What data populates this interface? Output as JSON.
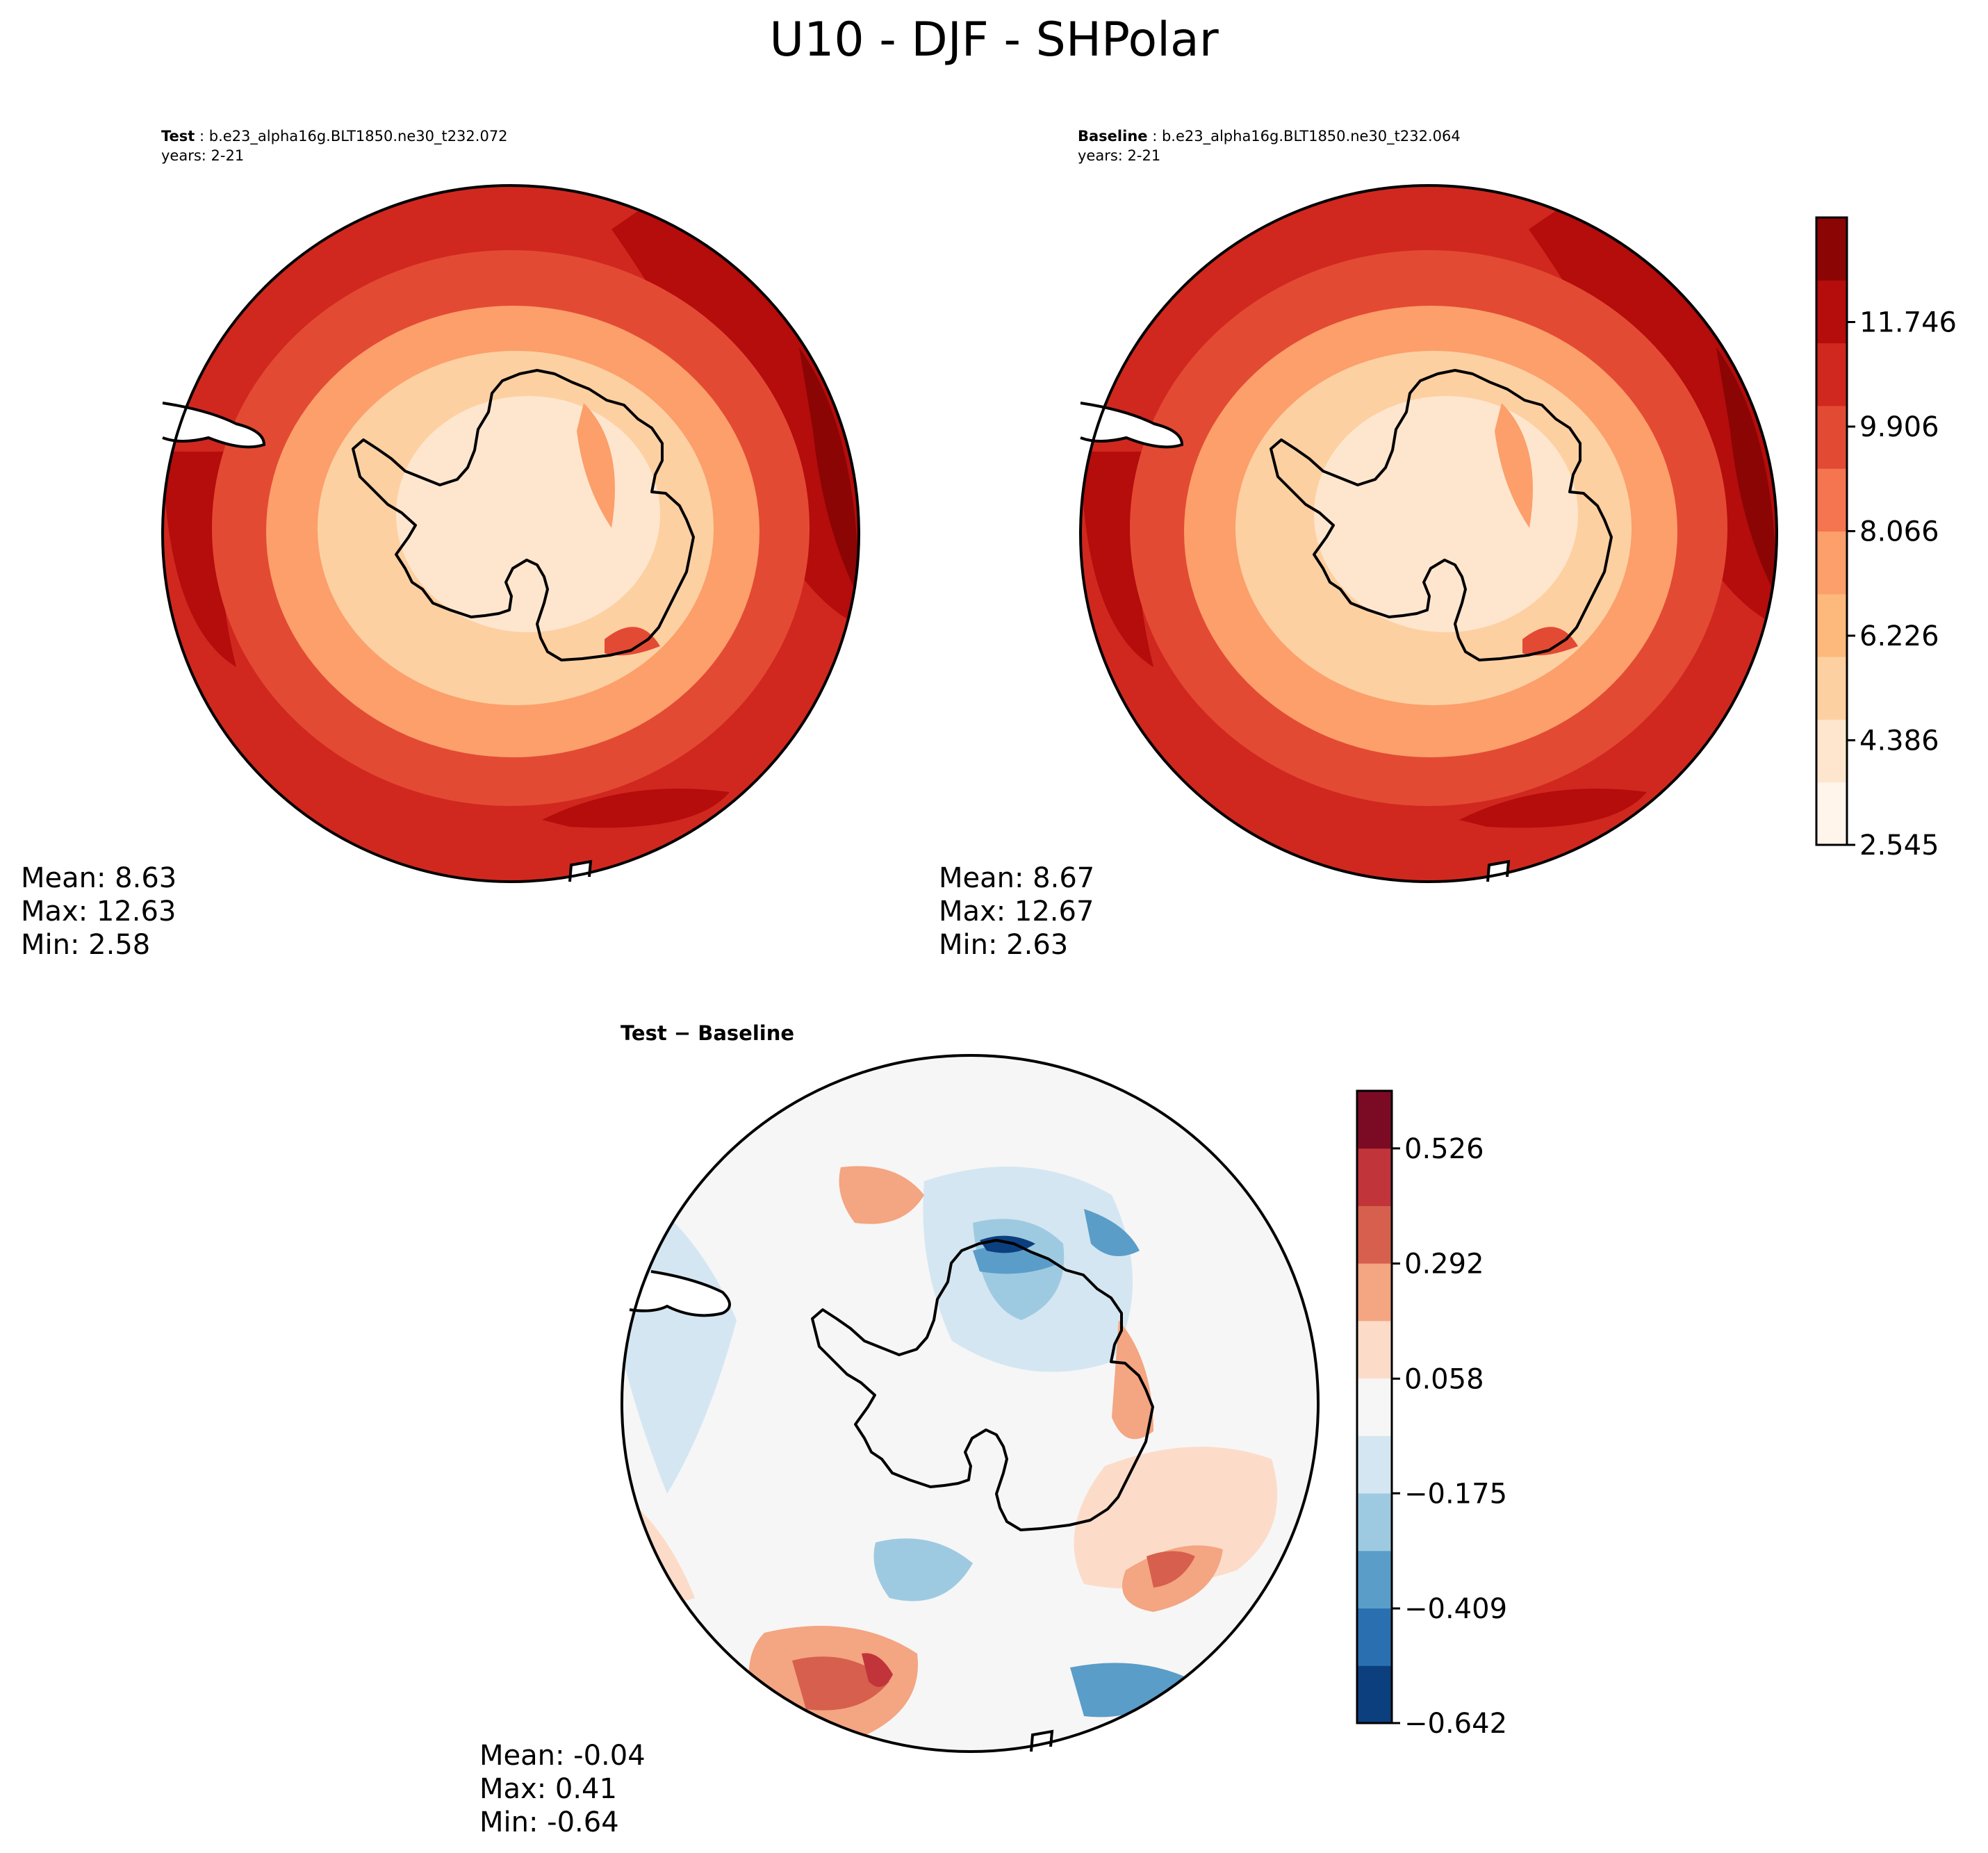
{
  "title": "U10 - DJF - SHPolar",
  "panels": {
    "test": {
      "label": "Test",
      "case": "b.e23_alpha16g.BLT1850.ne30_t232.072",
      "years": "years: 2-21",
      "stats": {
        "mean": "Mean:  8.63",
        "max": "Max: 12.63",
        "min": "Min:  2.58"
      }
    },
    "baseline": {
      "label": "Baseline",
      "case": "b.e23_alpha16g.BLT1850.ne30_t232.064",
      "years": "years: 2-21",
      "stats": {
        "mean": "Mean:  8.67",
        "max": "Max: 12.67",
        "min": "Min:  2.63"
      }
    },
    "difference": {
      "title": "Test − Baseline",
      "stats": {
        "mean": "Mean: -0.04",
        "max": "Max:  0.41",
        "min": "Min: -0.64"
      }
    }
  },
  "colorbars": {
    "absolute": {
      "ticks": [
        "2.545",
        "4.386",
        "6.226",
        "8.066",
        "9.906",
        "11.746"
      ],
      "tick_values": [
        2.545,
        4.386,
        6.226,
        8.066,
        9.906,
        11.746
      ],
      "range": [
        2.545,
        13.586
      ],
      "colors": [
        "#fff5eb",
        "#fee6ce",
        "#fdd0a2",
        "#fdb97b",
        "#fc9f6b",
        "#f4754f",
        "#e34a33",
        "#d0281f",
        "#b50c0c",
        "#8b0505"
      ]
    },
    "difference": {
      "ticks": [
        "−0.642",
        "−0.409",
        "−0.175",
        "0.058",
        "0.292",
        "0.526"
      ],
      "tick_values": [
        -0.642,
        -0.409,
        -0.175,
        0.058,
        0.292,
        0.526
      ],
      "range": [
        -0.642,
        0.643
      ],
      "colors": [
        "#0c3f7e",
        "#2a70b0",
        "#5a9dc8",
        "#9ecae1",
        "#d4e6f1",
        "#f6f6f6",
        "#fcdcc9",
        "#f4a582",
        "#d6604d",
        "#c0343a",
        "#7b0b24"
      ]
    }
  },
  "map_colors": {
    "outer": "#d0281f",
    "mid": "#e34a33",
    "coastal": "#fc9f6b",
    "inner": "#fdd0a2",
    "core": "#fee6ce",
    "strong": "#b50c0c",
    "max": "#8b0505",
    "diff_bg": "#f6f6f6"
  }
}
